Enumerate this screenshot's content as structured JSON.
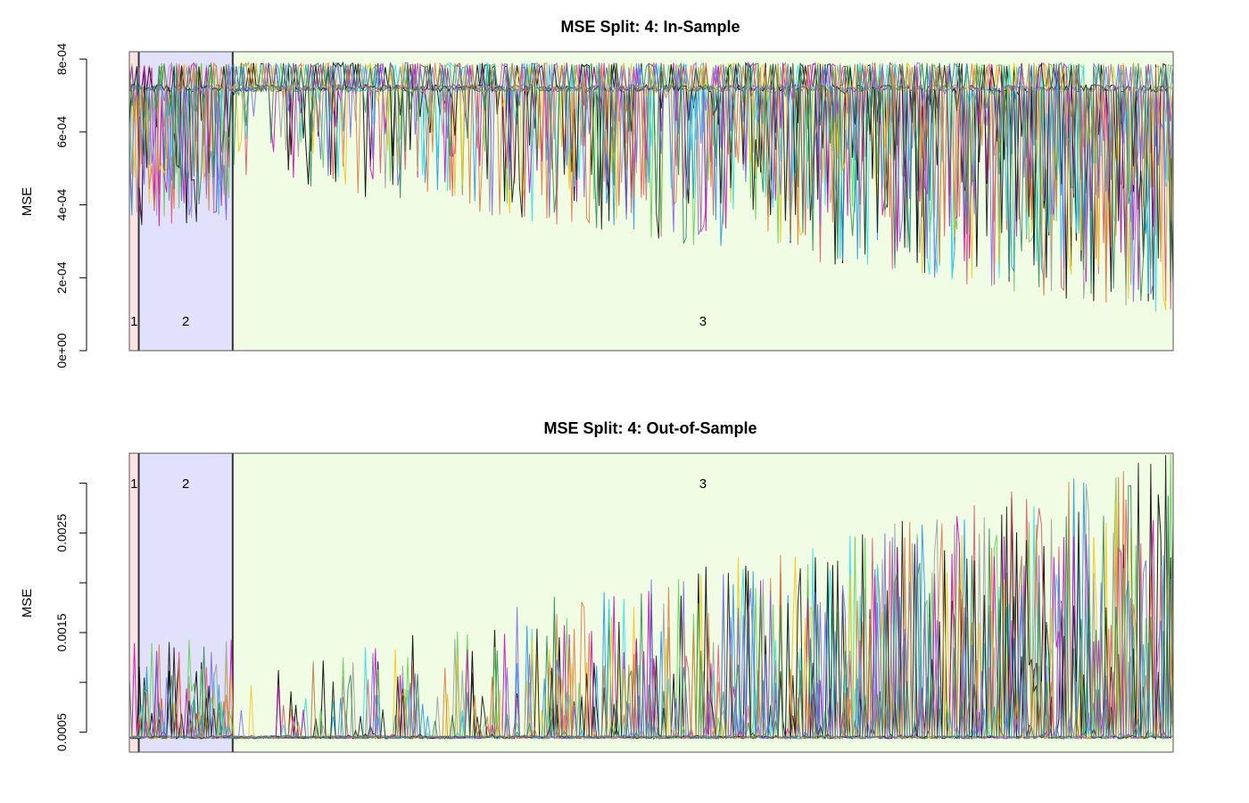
{
  "chart_data": [
    {
      "type": "line",
      "title": "MSE Split: 4: In-Sample",
      "xlabel": "",
      "ylabel": "MSE",
      "ylim": [
        0,
        0.00082
      ],
      "y_ticks": [
        0,
        0.0002,
        0.0004,
        0.0006,
        0.0008
      ],
      "y_tick_labels": [
        "0e+00",
        "2e-04",
        "4e-04",
        "6e-04",
        "8e-04"
      ],
      "grid": false,
      "legend": "none",
      "x_range": [
        0,
        1000
      ],
      "regions": [
        {
          "label": "1",
          "x_start": 0,
          "x_end": 9,
          "color": "#fce4e4"
        },
        {
          "label": "2",
          "x_start": 9,
          "x_end": 99,
          "color": "#e1e1fb"
        },
        {
          "label": "3",
          "x_start": 99,
          "x_end": 1000,
          "color": "#f0fde4"
        }
      ],
      "series_summary": {
        "n_series": 12,
        "baseline": 0.00072,
        "upper_bound": 0.00079,
        "dip_minimum_approx": 3e-05
      }
    },
    {
      "type": "line",
      "title": "MSE Split: 4: Out-of-Sample",
      "xlabel": "",
      "ylabel": "MSE",
      "ylim": [
        0.0003,
        0.0033
      ],
      "y_ticks": [
        0.0005,
        0.001,
        0.0015,
        0.002,
        0.0025,
        0.003
      ],
      "y_tick_labels": [
        "0.0005",
        "",
        "0.0015",
        "",
        "0.0025",
        ""
      ],
      "grid": false,
      "legend": "none",
      "x_range": [
        0,
        1000
      ],
      "regions": [
        {
          "label": "1",
          "x_start": 0,
          "x_end": 9,
          "color": "#fce4e4"
        },
        {
          "label": "2",
          "x_start": 9,
          "x_end": 99,
          "color": "#e1e1fb"
        },
        {
          "label": "3",
          "x_start": 99,
          "x_end": 1000,
          "color": "#f0fde4"
        }
      ],
      "series_summary": {
        "n_series": 12,
        "baseline": 0.00045,
        "spike_max_approx": 0.0033
      }
    }
  ],
  "colors": {
    "series": [
      "#000000",
      "#df536b",
      "#61d04f",
      "#2297e6",
      "#28e2e5",
      "#cd0bbc",
      "#f5c710",
      "#9e9e9e",
      "#1a1a1a",
      "#e07b39",
      "#7b68ee",
      "#2e8b57"
    ],
    "region_border": "#333333",
    "plot_border": "#555555"
  }
}
